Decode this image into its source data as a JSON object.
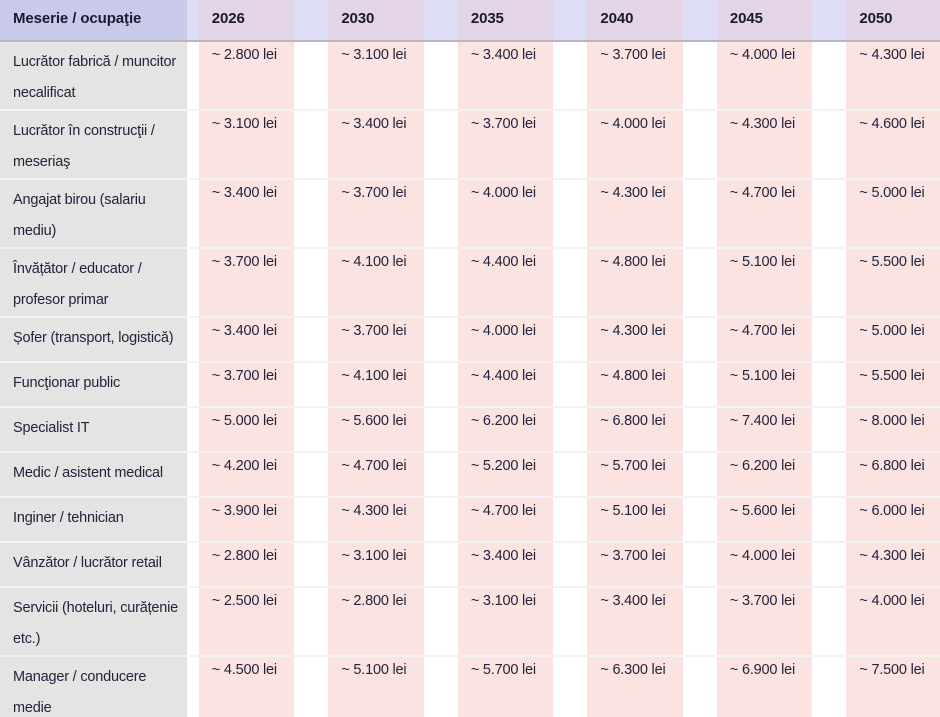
{
  "table": {
    "header": {
      "label": "Meserie / ocupaţie",
      "years": [
        "2026",
        "2030",
        "2035",
        "2040",
        "2045",
        "2050"
      ]
    },
    "rows": [
      {
        "label": "Lucrător fabrică / muncitor necalificat",
        "label_lines": [
          "Lucrător fabrică / muncitor",
          "necalificat"
        ],
        "values": [
          "~ 2.800 lei",
          "~ 3.100 lei",
          "~ 3.400 lei",
          "~ 3.700 lei",
          "~ 4.000 lei",
          "~ 4.300 lei"
        ]
      },
      {
        "label": "Lucrător în construcţii / meseriaş",
        "label_lines": [
          "Lucrător în construcţii /",
          "meseriaş"
        ],
        "values": [
          "~ 3.100 lei",
          "~ 3.400 lei",
          "~ 3.700 lei",
          "~ 4.000 lei",
          "~ 4.300 lei",
          "~ 4.600 lei"
        ]
      },
      {
        "label": "Angajat birou (salariu mediu)",
        "label_lines": [
          "Angajat birou (salariu",
          "mediu)"
        ],
        "values": [
          "~ 3.400 lei",
          "~ 3.700 lei",
          "~ 4.000 lei",
          "~ 4.300 lei",
          "~ 4.700 lei",
          "~ 5.000 lei"
        ]
      },
      {
        "label": "Învățător / educator / profesor primar",
        "label_lines": [
          "Învățător / educator /",
          "profesor primar"
        ],
        "values": [
          "~ 3.700 lei",
          "~ 4.100 lei",
          "~ 4.400 lei",
          "~ 4.800 lei",
          "~ 5.100 lei",
          "~ 5.500 lei"
        ]
      },
      {
        "label": "Șofer (transport, logistică)",
        "label_lines": [
          "Șofer (transport, logistică)"
        ],
        "values": [
          "~ 3.400 lei",
          "~ 3.700 lei",
          "~ 4.000 lei",
          "~ 4.300 lei",
          "~ 4.700 lei",
          "~ 5.000 lei"
        ]
      },
      {
        "label": "Funcţionar public",
        "label_lines": [
          "Funcţionar public"
        ],
        "values": [
          "~ 3.700 lei",
          "~ 4.100 lei",
          "~ 4.400 lei",
          "~ 4.800 lei",
          "~ 5.100 lei",
          "~ 5.500 lei"
        ]
      },
      {
        "label": "Specialist IT",
        "label_lines": [
          "Specialist IT"
        ],
        "values": [
          "~ 5.000 lei",
          "~ 5.600 lei",
          "~ 6.200 lei",
          "~ 6.800 lei",
          "~ 7.400 lei",
          "~ 8.000 lei"
        ]
      },
      {
        "label": "Medic / asistent medical",
        "label_lines": [
          "Medic / asistent medical"
        ],
        "values": [
          "~ 4.200 lei",
          "~ 4.700 lei",
          "~ 5.200 lei",
          "~ 5.700 lei",
          "~ 6.200 lei",
          "~ 6.800 lei"
        ]
      },
      {
        "label": "Inginer / tehnician",
        "label_lines": [
          "Inginer / tehnician"
        ],
        "values": [
          "~ 3.900 lei",
          "~ 4.300 lei",
          "~ 4.700 lei",
          "~ 5.100 lei",
          "~ 5.600 lei",
          "~ 6.000 lei"
        ]
      },
      {
        "label": "Vânzător / lucrător retail",
        "label_lines": [
          "Vânzător / lucrător retail"
        ],
        "values": [
          "~ 2.800 lei",
          "~ 3.100 lei",
          "~ 3.400 lei",
          "~ 3.700 lei",
          "~ 4.000 lei",
          "~ 4.300 lei"
        ]
      },
      {
        "label": "Servicii (hoteluri, curățenie etc.)",
        "label_lines": [
          "Servicii (hoteluri, curățenie",
          "etc.)"
        ],
        "values": [
          "~ 2.500 lei",
          "~ 2.800 lei",
          "~ 3.100 lei",
          "~ 3.400 lei",
          "~ 3.700 lei",
          "~ 4.000 lei"
        ]
      },
      {
        "label": "Manager / conducere medie",
        "label_lines": [
          "Manager / conducere",
          "medie"
        ],
        "values": [
          "~ 4.500 lei",
          "~ 5.100 lei",
          "~ 5.700 lei",
          "~ 6.300 lei",
          "~ 6.900 lei",
          "~ 7.500 lei"
        ]
      }
    ]
  },
  "chart_data": {
    "type": "table",
    "title": "",
    "unit": "lei",
    "value_prefix": "~",
    "columns": [
      "Meserie / ocupaţie",
      "2026",
      "2030",
      "2035",
      "2040",
      "2045",
      "2050"
    ],
    "rows": [
      {
        "label": "Lucrător fabrică / muncitor necalificat",
        "values_lei": [
          2800,
          3100,
          3400,
          3700,
          4000,
          4300
        ]
      },
      {
        "label": "Lucrător în construcţii / meseriaş",
        "values_lei": [
          3100,
          3400,
          3700,
          4000,
          4300,
          4600
        ]
      },
      {
        "label": "Angajat birou (salariu mediu)",
        "values_lei": [
          3400,
          3700,
          4000,
          4300,
          4700,
          5000
        ]
      },
      {
        "label": "Învățător / educator / profesor primar",
        "values_lei": [
          3700,
          4100,
          4400,
          4800,
          5100,
          5500
        ]
      },
      {
        "label": "Șofer (transport, logistică)",
        "values_lei": [
          3400,
          3700,
          4000,
          4300,
          4700,
          5000
        ]
      },
      {
        "label": "Funcţionar public",
        "values_lei": [
          3700,
          4100,
          4400,
          4800,
          5100,
          5500
        ]
      },
      {
        "label": "Specialist IT",
        "values_lei": [
          5000,
          5600,
          6200,
          6800,
          7400,
          8000
        ]
      },
      {
        "label": "Medic / asistent medical",
        "values_lei": [
          4200,
          4700,
          5200,
          5700,
          6200,
          6800
        ]
      },
      {
        "label": "Inginer / tehnician",
        "values_lei": [
          3900,
          4300,
          4700,
          5100,
          5600,
          6000
        ]
      },
      {
        "label": "Vânzător / lucrător retail",
        "values_lei": [
          2800,
          3100,
          3400,
          3700,
          4000,
          4300
        ]
      },
      {
        "label": "Servicii (hoteluri, curățenie etc.)",
        "values_lei": [
          2500,
          2800,
          3100,
          3400,
          3700,
          4000
        ]
      },
      {
        "label": "Manager / conducere medie",
        "values_lei": [
          4500,
          5100,
          5700,
          6300,
          6900,
          7500
        ]
      }
    ]
  },
  "colors": {
    "header_label_bg": "#c9cae9",
    "header_year_bg": "#e3d4e7",
    "header_gap_bg": "#dddef6",
    "header_border": "#b9b4c0",
    "body_label_bg": "#e4e4e4",
    "body_value_bg": "#fbe3e1",
    "body_gap_bg": "#ffffff",
    "row_separator": "#f5f3f2",
    "text": "#23233b"
  }
}
